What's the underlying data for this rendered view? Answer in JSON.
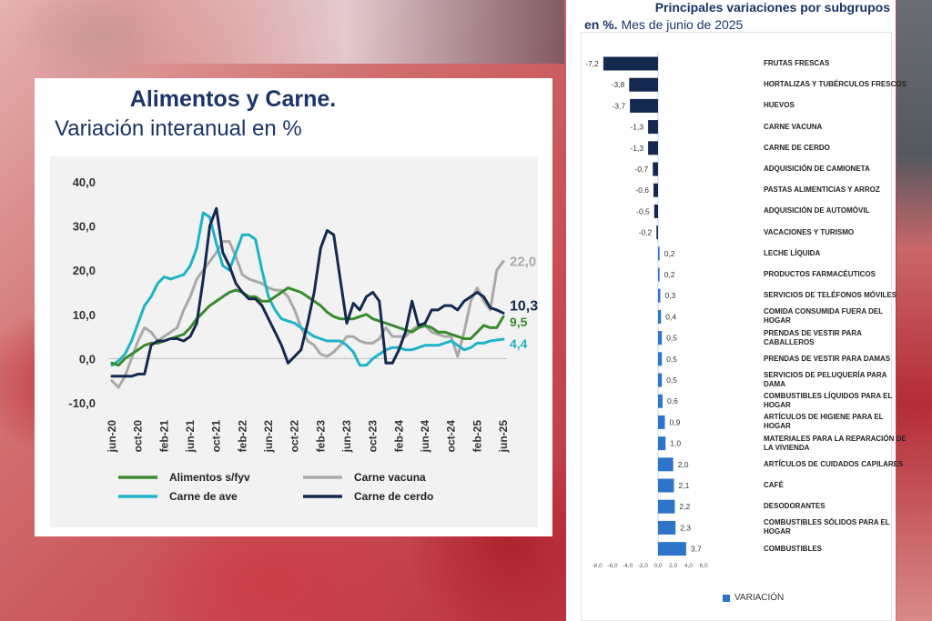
{
  "left_panel": {
    "title": "Alimentos y Carne.",
    "subtitle": "Variación interanual en %"
  },
  "right_panel": {
    "title": "Principales variaciones por subgrupos",
    "subtitle_bold": "en %.",
    "subtitle_rest": " Mes de junio de 2025",
    "legend_label": "VARIACIÓN"
  },
  "colors": {
    "alimentos": "#3a8a2e",
    "vacuna": "#a9a9a9",
    "ave": "#1fb3c7",
    "cerdo": "#13294f",
    "bar_negative": "#13294f",
    "bar_positive": "#2e75c9",
    "title_blue": "#1a3466"
  },
  "chart_data": [
    {
      "type": "line",
      "title": "Alimentos y Carne. Variación interanual en %",
      "ylim": [
        -10,
        40
      ],
      "yticks": [
        "40,0",
        "30,0",
        "20,0",
        "10,0",
        "0,0",
        "-10,0"
      ],
      "ytick_values": [
        40,
        30,
        20,
        10,
        0,
        -10
      ],
      "xtick_labels": [
        "jun-20",
        "oct-20",
        "feb-21",
        "jun-21",
        "oct-21",
        "feb-22",
        "jun-22",
        "oct-22",
        "feb-23",
        "jun-23",
        "oct-23",
        "feb-24",
        "jun-24",
        "oct-24",
        "feb-25",
        "jun-25"
      ],
      "n_points": 61,
      "series": [
        {
          "name": "Alimentos s/fyv",
          "color_key": "alimentos",
          "end_label": "9,5",
          "values": [
            -1,
            -1.5,
            0,
            1,
            2,
            3,
            3.5,
            3.5,
            4,
            4.5,
            5,
            5.5,
            7,
            9,
            10.5,
            12,
            13,
            14,
            15,
            15.5,
            15,
            14,
            14,
            13,
            13,
            14,
            15,
            16,
            15.5,
            15,
            14,
            13,
            12,
            10.5,
            9.5,
            9,
            9,
            9,
            9.5,
            10,
            9,
            8.5,
            8,
            7.5,
            7,
            6.5,
            6,
            7,
            7.5,
            7,
            6,
            6,
            5.5,
            5,
            4.5,
            4.5,
            6,
            7.5,
            7,
            7,
            9.5
          ]
        },
        {
          "name": "Carne vacuna",
          "color_key": "vacuna",
          "end_label": "22,0",
          "values": [
            -5,
            -6.5,
            -4,
            0,
            4,
            7,
            6,
            4,
            5,
            6,
            7,
            11,
            14,
            18,
            20,
            22,
            24,
            26.5,
            26.5,
            23,
            19,
            18,
            17.5,
            17,
            16,
            15.5,
            15.5,
            14,
            11,
            7,
            4,
            3,
            1,
            0.5,
            1.5,
            3,
            5,
            5,
            4,
            3.5,
            3.5,
            4.5,
            7,
            5,
            5,
            5,
            6.5,
            7.5,
            7.5,
            6,
            5.5,
            5,
            5,
            0.5,
            6,
            13,
            16,
            13,
            11,
            20,
            22
          ]
        },
        {
          "name": "Carne de ave",
          "color_key": "ave",
          "end_label": "4,4",
          "values": [
            -1.5,
            -0.5,
            1,
            4,
            8,
            12,
            14,
            17,
            18.5,
            18,
            18.5,
            19,
            21,
            25,
            33,
            32,
            26,
            21,
            20,
            24,
            28,
            28,
            27,
            20,
            14,
            11,
            9,
            8.5,
            8,
            7,
            6,
            5,
            4.5,
            4,
            4,
            4,
            3,
            1.5,
            -1.5,
            -1.5,
            0,
            1,
            2,
            2.5,
            2.5,
            2,
            2,
            2.5,
            3,
            3,
            3,
            3.5,
            4,
            3,
            2,
            2.5,
            3.5,
            3.5,
            4,
            4.2,
            4.4
          ]
        },
        {
          "name": "Carne de cerdo",
          "color_key": "cerdo",
          "end_label": "10,3",
          "values": [
            -4,
            -4,
            -4,
            -4,
            -3.5,
            -3.5,
            3,
            4,
            4,
            4.5,
            4.5,
            4,
            5,
            8,
            18,
            30,
            34,
            24,
            21,
            17,
            15,
            13.5,
            13.5,
            12,
            9,
            6,
            3,
            -1,
            0.5,
            2,
            8,
            15,
            25,
            29,
            28,
            18,
            8,
            12.5,
            11,
            14,
            15,
            13,
            -1,
            -1,
            2,
            6,
            13,
            7.5,
            8,
            11,
            11,
            12,
            12,
            11,
            13,
            14,
            15,
            14,
            11.5,
            11,
            10.3
          ]
        }
      ]
    },
    {
      "type": "bar",
      "orientation": "horizontal",
      "title": "Principales variaciones por subgrupos en %. Mes de junio de 2025",
      "xlim": [
        -8,
        6
      ],
      "xtick_labels": [
        "-8,0",
        "-6,0",
        "-4,0",
        "-2,0",
        "0,0",
        "2,0",
        "4,0",
        "6,0"
      ],
      "xtick_values": [
        -8,
        -6,
        -4,
        -2,
        0,
        2,
        4,
        6
      ],
      "series_name": "VARIACIÓN",
      "categories": [
        "FRUTAS FRESCAS",
        "HORTALIZAS Y TUBÉRCULOS FRESCOS",
        "HUEVOS",
        "CARNE VACUNA",
        "CARNE DE CERDO",
        "ADQUISICIÓN DE CAMIONETA",
        "PASTAS ALIMENTICIAS Y ARROZ",
        "ADQUISICIÓN DE AUTOMÓVIL",
        "VACACIONES Y TURISMO",
        "LECHE LÍQUIDA",
        "PRODUCTOS FARMACÉUTICOS",
        "SERVICIOS DE TELÉFONOS MÓVILES",
        "COMIDA CONSUMIDA FUERA DEL HOGAR",
        "PRENDAS DE VESTIR PARA CABALLEROS",
        "PRENDAS DE VESTIR PARA DAMAS",
        "SERVICIOS DE PELUQUERÍA PARA DAMA",
        "COMBUSTIBLES LÍQUIDOS PARA EL HOGAR",
        "ARTÍCULOS DE HIGIENE PARA EL HOGAR",
        "MATERIALES PARA LA REPARACIÓN DE LA VIVIENDA",
        "ARTÍCULOS DE CUIDADOS CAPILARES",
        "CAFÉ",
        "DESODORANTES",
        "COMBUSTIBLES SÓLIDOS PARA EL HOGAR",
        "COMBUSTIBLES"
      ],
      "values": [
        -7.2,
        -3.8,
        -3.7,
        -1.3,
        -1.3,
        -0.7,
        -0.6,
        -0.5,
        -0.2,
        0.2,
        0.2,
        0.3,
        0.4,
        0.5,
        0.5,
        0.5,
        0.6,
        0.9,
        1.0,
        2.0,
        2.1,
        2.2,
        2.3,
        3.7
      ],
      "value_labels": [
        "-7,2",
        "-3,8",
        "-3,7",
        "-1,3",
        "-1,3",
        "-0,7",
        "-0,6",
        "-0,5",
        "-0,2",
        "0,2",
        "0,2",
        "0,3",
        "0,4",
        "0,5",
        "0,5",
        "0,5",
        "0,6",
        "0,9",
        "1,0",
        "2,0",
        "2,1",
        "2,2",
        "2,3",
        "3,7"
      ]
    }
  ]
}
